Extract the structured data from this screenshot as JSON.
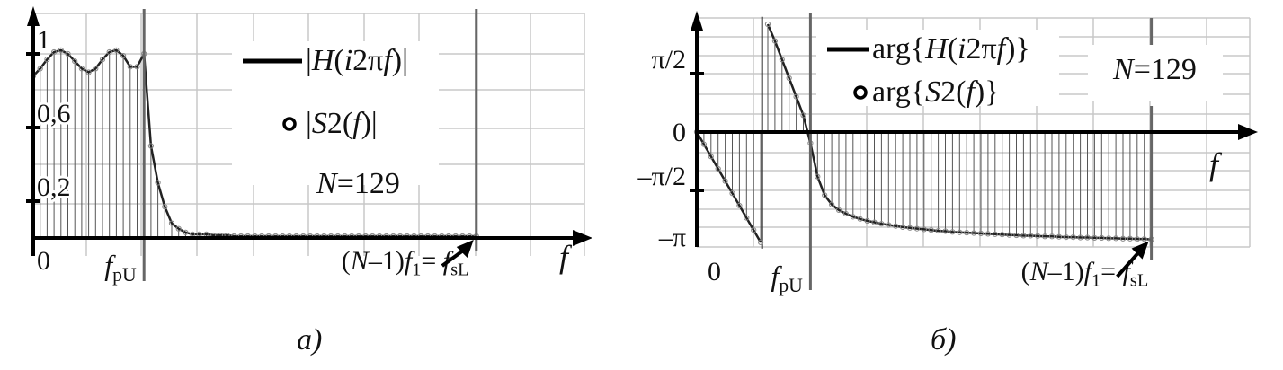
{
  "chart_data": [
    {
      "type": "line",
      "panel_label": "а)",
      "legend": [
        {
          "marker": "line",
          "label_parts": [
            "|",
            "H",
            "(",
            "i",
            "2π",
            "f",
            ")|"
          ]
        },
        {
          "marker": "circle",
          "label_parts": [
            "|",
            "S",
            "2(",
            "f",
            ")|"
          ]
        }
      ],
      "annotation": {
        "N": "N",
        "eq": "=129"
      },
      "y_tick_labels": [
        "1",
        "0,6",
        "0,2"
      ],
      "y_ticks": [
        1,
        0.6,
        0.2
      ],
      "ylim": [
        0,
        1.2
      ],
      "x_labels": {
        "zero": "0",
        "fpU": [
          "f",
          "pU"
        ],
        "fsL": [
          "(",
          "N",
          "–1)",
          "f",
          "1",
          "= ",
          "f",
          "sL"
        ],
        "axis": "f"
      },
      "x_marker_index": {
        "fpU": 16,
        "fsL": 64
      },
      "xlim_index": [
        0,
        80
      ],
      "grid": true,
      "series": [
        {
          "name": "|H(i2πf)| / |S2(f)|",
          "k_step": 1,
          "values": [
            0.88,
            0.92,
            0.97,
            1.01,
            1.02,
            1.0,
            0.96,
            0.92,
            0.9,
            0.92,
            0.97,
            1.01,
            1.02,
            0.99,
            0.93,
            0.93,
            1.0,
            0.5,
            0.3,
            0.17,
            0.08,
            0.05,
            0.03,
            0.02,
            0.02,
            0.02,
            0.015,
            0.015,
            0.015,
            0.01,
            0.01,
            0.01,
            0.01,
            0.01,
            0.01,
            0.01,
            0.01,
            0.01,
            0.01,
            0.01,
            0.01,
            0.01,
            0.01,
            0.01,
            0.01,
            0.01,
            0.01,
            0.01,
            0.01,
            0.01,
            0.01,
            0.01,
            0.01,
            0.01,
            0.01,
            0.01,
            0.01,
            0.01,
            0.01,
            0.01,
            0.01,
            0.01,
            0.01,
            0.01,
            0.01
          ]
        }
      ]
    },
    {
      "type": "line",
      "panel_label": "б)",
      "legend": [
        {
          "marker": "line",
          "label_parts": [
            "arg{",
            "H",
            "(",
            "i",
            "2π",
            "f",
            ")}"
          ]
        },
        {
          "marker": "circle",
          "label_parts": [
            "arg{",
            "S",
            "2(",
            "f",
            ")}"
          ]
        }
      ],
      "annotation": {
        "N": "N",
        "eq": "=129"
      },
      "y_tick_labels": [
        "π/2",
        "0",
        "–π/2",
        "–π"
      ],
      "y_ticks": [
        1.5708,
        0,
        -1.5708,
        -3.1416
      ],
      "ylim": [
        -3.1416,
        3.14
      ],
      "x_labels": {
        "zero": "0",
        "fpU": [
          "f",
          "pU"
        ],
        "fsL": [
          "(",
          "N",
          "–1)",
          "f",
          "1",
          "= ",
          "f",
          "sL"
        ],
        "axis": "f"
      },
      "x_marker_index": {
        "fpU": 16,
        "fsL": 64
      },
      "xlim_index": [
        0,
        78
      ],
      "grid": true,
      "series": [
        {
          "name": "arg{H(i2πf)} / arg{S2(f)}",
          "k_step": 1,
          "values": [
            0,
            -0.33,
            -0.66,
            -0.99,
            -1.32,
            -1.65,
            -1.98,
            -2.31,
            -2.64,
            -2.97,
            2.9,
            2.45,
            1.95,
            1.45,
            0.95,
            0.45,
            -0.3,
            -1.2,
            -1.7,
            -1.95,
            -2.1,
            -2.2,
            -2.28,
            -2.34,
            -2.39,
            -2.43,
            -2.47,
            -2.5,
            -2.53,
            -2.56,
            -2.58,
            -2.6,
            -2.62,
            -2.64,
            -2.66,
            -2.67,
            -2.69,
            -2.7,
            -2.71,
            -2.72,
            -2.73,
            -2.74,
            -2.75,
            -2.76,
            -2.77,
            -2.78,
            -2.79,
            -2.79,
            -2.8,
            -2.81,
            -2.81,
            -2.82,
            -2.83,
            -2.83,
            -2.84,
            -2.84,
            -2.85,
            -2.85,
            -2.86,
            -2.86,
            -2.87,
            -2.87,
            -2.88,
            -2.88,
            -2.89
          ]
        }
      ]
    }
  ]
}
